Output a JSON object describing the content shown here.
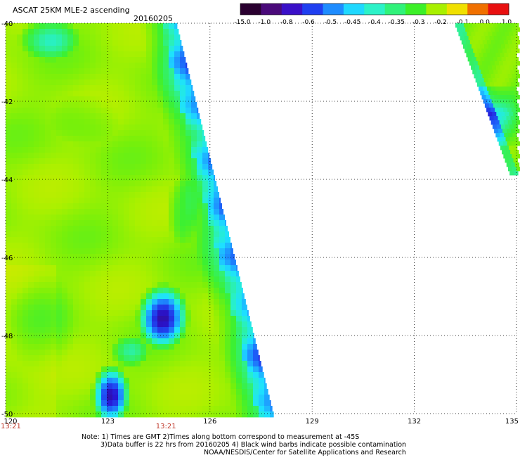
{
  "header": {
    "title": "ASCAT 25KM MLE-2 ascending",
    "date": "20160205"
  },
  "colorbar": {
    "labels": [
      "-15.0",
      "-1.0",
      "-0.8",
      "-0.6",
      "-0.5",
      "-0.45",
      "-0.4",
      "-0.35",
      "-0.3",
      "-0.2",
      "-0.1",
      "0.0",
      "1.0"
    ],
    "colors": [
      "#2a0030",
      "#4a0a7a",
      "#3a10c8",
      "#1f3ff0",
      "#1e8cff",
      "#1fd8ff",
      "#2cf2c8",
      "#30f27a",
      "#3cf028",
      "#a8f000",
      "#f0e000",
      "#f07000",
      "#e81010"
    ]
  },
  "axes": {
    "lon_labels": [
      "120",
      "123",
      "126",
      "129",
      "132",
      "135"
    ],
    "lon_values": [
      120,
      123,
      126,
      129,
      132,
      135
    ],
    "lat_labels": [
      "-40",
      "-42",
      "-44",
      "-46",
      "-48",
      "-50"
    ],
    "lat_values": [
      -40,
      -42,
      -44,
      -46,
      -48,
      -50
    ],
    "time_labels": [
      "13:21",
      "13:21"
    ],
    "time_lon": [
      120,
      124.7
    ]
  },
  "notes": {
    "line1": "Note: 1) Times are GMT 2)Times along bottom correspond to measurement at -45S",
    "line2": "3)Data buffer is 22 hrs from 20160205 4) Black wind barbs indicate possible contamination",
    "line3": "NOAA/NESDIS/Center for Satellite Applications and Research"
  }
}
